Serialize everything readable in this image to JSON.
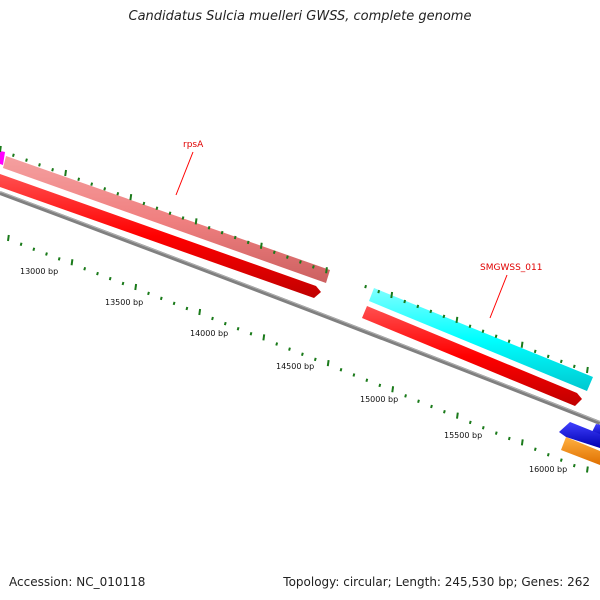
{
  "title": "Candidatus Sulcia muelleri GWSS, complete genome",
  "accession": "Accession: NC_010118",
  "summary": "Topology: circular; Length: 245,530 bp; Genes: 262",
  "scale_labels": [
    "13000 bp",
    "13500 bp",
    "14000 bp",
    "14500 bp",
    "15000 bp",
    "15500 bp",
    "16000 bp"
  ],
  "gene_labels": [
    "rpsA",
    "SMGWSS_011"
  ],
  "colors": {
    "backbone": "#808080",
    "cds_forward": "#ff0000",
    "rpsA_feature": "#f08080",
    "smgwss_011_feature": "#00ffff",
    "blue_feature": "#0000ee",
    "orange_feature": "#ff8c00",
    "magenta_feature": "#ff00ff",
    "tick": "#1a7a1a",
    "label_line": "#ff0000"
  }
}
